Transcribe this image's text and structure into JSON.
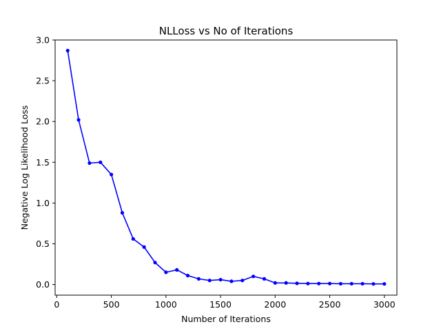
{
  "chart_data": {
    "type": "line",
    "title": "NLLoss vs No of Iterations",
    "xlabel": "Number of Iterations",
    "ylabel": "Negative Log Likelihood Loss",
    "xlim": [
      -15,
      3115
    ],
    "ylim": [
      -0.13,
      3.0
    ],
    "xticks": [
      0,
      500,
      1000,
      1500,
      2000,
      2500,
      3000
    ],
    "xtick_labels": [
      "0",
      "500",
      "1000",
      "1500",
      "2000",
      "2500",
      "3000"
    ],
    "yticks": [
      0.0,
      0.5,
      1.0,
      1.5,
      2.0,
      2.5,
      3.0
    ],
    "ytick_labels": [
      "0.0",
      "0.5",
      "1.0",
      "1.5",
      "2.0",
      "2.5",
      "3.0"
    ],
    "grid": false,
    "legend": "none",
    "series": [
      {
        "color": "#0000ff",
        "marker": "dot",
        "x": [
          100,
          200,
          300,
          400,
          500,
          600,
          700,
          800,
          900,
          1000,
          1100,
          1200,
          1300,
          1400,
          1500,
          1600,
          1700,
          1800,
          1900,
          2000,
          2100,
          2200,
          2300,
          2400,
          2500,
          2600,
          2700,
          2800,
          2900,
          3000
        ],
        "y": [
          2.87,
          2.02,
          1.49,
          1.5,
          1.35,
          0.88,
          0.56,
          0.46,
          0.27,
          0.15,
          0.18,
          0.11,
          0.07,
          0.05,
          0.06,
          0.04,
          0.05,
          0.1,
          0.07,
          0.02,
          0.02,
          0.015,
          0.012,
          0.012,
          0.012,
          0.01,
          0.01,
          0.01,
          0.008,
          0.008
        ]
      }
    ]
  }
}
